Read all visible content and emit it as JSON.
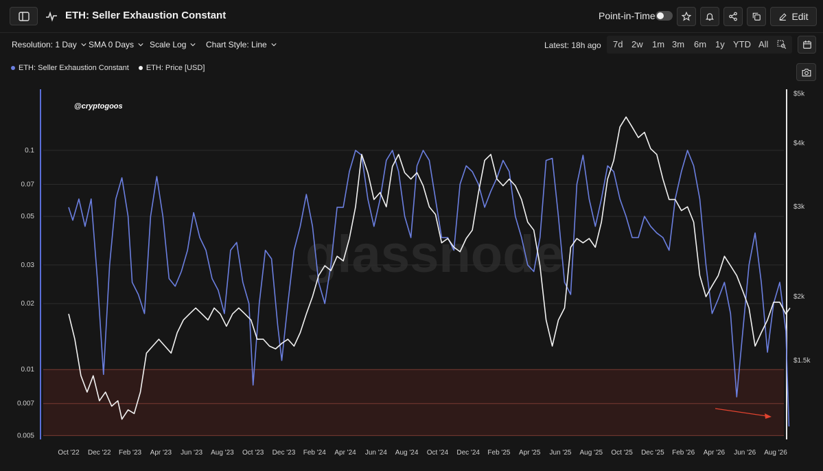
{
  "header": {
    "title": "ETH: Seller Exhaustion Constant",
    "point_in_time_label": "Point-in-Time",
    "edit_label": "Edit"
  },
  "toolbar": {
    "resolution": "Resolution: 1 Day",
    "sma": "SMA 0 Days",
    "scale": "Scale Log",
    "chart_style": "Chart Style: Line",
    "latest": "Latest: 18h ago",
    "ranges": [
      "7d",
      "2w",
      "1m",
      "3m",
      "6m",
      "1y",
      "YTD",
      "All"
    ]
  },
  "legend": [
    {
      "label": "ETH: Seller Exhaustion Constant",
      "color": "#6b7fe0"
    },
    {
      "label": "ETH: Price [USD]",
      "color": "#f2f2f2"
    }
  ],
  "watermark": "glassnode",
  "handle": "@cryptogoos",
  "chart_data": {
    "type": "line",
    "scale": "log",
    "x_ticks": [
      "Oct '22",
      "Dec '22",
      "Feb '23",
      "Apr '23",
      "Jun '23",
      "Aug '23",
      "Oct '23",
      "Dec '23",
      "Feb '24",
      "Apr '24",
      "Jun '24",
      "Aug '24",
      "Oct '24",
      "Dec '24",
      "Feb '25",
      "Apr '25",
      "Jun '25",
      "Aug '25",
      "Oct '25",
      "Dec '25",
      "Feb '26",
      "Apr '26",
      "Jun '26",
      "Aug '26"
    ],
    "y_left_ticks": [
      "0.1",
      "0.07",
      "0.05",
      "0.03",
      "0.02",
      "0.01",
      "0.007",
      "0.005"
    ],
    "y_left_values": [
      0.1,
      0.07,
      0.05,
      0.03,
      0.02,
      0.01,
      0.007,
      0.005
    ],
    "y_left_range": [
      0.0048,
      0.19
    ],
    "y_right_ticks": [
      "$5k",
      "$4k",
      "$3k",
      "$2k",
      "$1.5k"
    ],
    "y_right_values": [
      5000,
      4000,
      3000,
      2000,
      1500
    ],
    "y_right_range": [
      1050,
      5100
    ],
    "zone": {
      "from": 0.005,
      "to": 0.01,
      "color": "#c0392b"
    },
    "series": [
      {
        "name": "ETH: Seller Exhaustion Constant",
        "color": "#6b7fe0",
        "points": [
          [
            0,
            0.055
          ],
          [
            0.2,
            0.048
          ],
          [
            0.5,
            0.06
          ],
          [
            0.8,
            0.045
          ],
          [
            1.1,
            0.06
          ],
          [
            1.4,
            0.026
          ],
          [
            1.7,
            0.0095
          ],
          [
            2.0,
            0.03
          ],
          [
            2.3,
            0.06
          ],
          [
            2.6,
            0.075
          ],
          [
            2.9,
            0.05
          ],
          [
            3.1,
            0.025
          ],
          [
            3.4,
            0.022
          ],
          [
            3.7,
            0.018
          ],
          [
            4.0,
            0.05
          ],
          [
            4.3,
            0.076
          ],
          [
            4.6,
            0.05
          ],
          [
            4.9,
            0.026
          ],
          [
            5.2,
            0.024
          ],
          [
            5.5,
            0.028
          ],
          [
            5.8,
            0.035
          ],
          [
            6.1,
            0.052
          ],
          [
            6.4,
            0.04
          ],
          [
            6.7,
            0.035
          ],
          [
            7.0,
            0.026
          ],
          [
            7.3,
            0.023
          ],
          [
            7.6,
            0.018
          ],
          [
            7.9,
            0.035
          ],
          [
            8.2,
            0.038
          ],
          [
            8.5,
            0.025
          ],
          [
            8.8,
            0.02
          ],
          [
            9.0,
            0.0085
          ],
          [
            9.3,
            0.02
          ],
          [
            9.6,
            0.035
          ],
          [
            9.9,
            0.032
          ],
          [
            10.2,
            0.016
          ],
          [
            10.4,
            0.011
          ],
          [
            10.7,
            0.02
          ],
          [
            11.0,
            0.035
          ],
          [
            11.3,
            0.045
          ],
          [
            11.6,
            0.063
          ],
          [
            11.9,
            0.045
          ],
          [
            12.2,
            0.025
          ],
          [
            12.5,
            0.02
          ],
          [
            12.8,
            0.03
          ],
          [
            13.1,
            0.055
          ],
          [
            13.4,
            0.055
          ],
          [
            13.7,
            0.08
          ],
          [
            14.0,
            0.1
          ],
          [
            14.3,
            0.095
          ],
          [
            14.6,
            0.06
          ],
          [
            14.9,
            0.045
          ],
          [
            15.2,
            0.06
          ],
          [
            15.5,
            0.09
          ],
          [
            15.8,
            0.1
          ],
          [
            16.1,
            0.08
          ],
          [
            16.4,
            0.05
          ],
          [
            16.7,
            0.04
          ],
          [
            17.0,
            0.085
          ],
          [
            17.3,
            0.1
          ],
          [
            17.6,
            0.09
          ],
          [
            17.9,
            0.06
          ],
          [
            18.2,
            0.04
          ],
          [
            18.5,
            0.04
          ],
          [
            18.8,
            0.035
          ],
          [
            19.1,
            0.07
          ],
          [
            19.4,
            0.085
          ],
          [
            19.7,
            0.08
          ],
          [
            20.0,
            0.07
          ],
          [
            20.3,
            0.055
          ],
          [
            20.6,
            0.065
          ],
          [
            20.9,
            0.075
          ],
          [
            21.2,
            0.09
          ],
          [
            21.5,
            0.08
          ],
          [
            21.8,
            0.05
          ],
          [
            22.1,
            0.04
          ],
          [
            22.4,
            0.03
          ],
          [
            22.7,
            0.028
          ],
          [
            23.0,
            0.04
          ],
          [
            23.3,
            0.09
          ],
          [
            23.6,
            0.092
          ],
          [
            23.9,
            0.05
          ],
          [
            24.2,
            0.025
          ],
          [
            24.5,
            0.022
          ],
          [
            24.8,
            0.07
          ],
          [
            25.1,
            0.095
          ],
          [
            25.4,
            0.06
          ],
          [
            25.7,
            0.045
          ],
          [
            26.0,
            0.06
          ],
          [
            26.3,
            0.085
          ],
          [
            26.6,
            0.08
          ],
          [
            26.9,
            0.06
          ],
          [
            27.2,
            0.05
          ],
          [
            27.5,
            0.04
          ],
          [
            27.8,
            0.04
          ],
          [
            28.1,
            0.05
          ],
          [
            28.4,
            0.045
          ],
          [
            28.7,
            0.042
          ],
          [
            29.0,
            0.04
          ],
          [
            29.3,
            0.035
          ],
          [
            29.6,
            0.06
          ],
          [
            29.9,
            0.08
          ],
          [
            30.2,
            0.1
          ],
          [
            30.5,
            0.085
          ],
          [
            30.8,
            0.06
          ],
          [
            31.1,
            0.03
          ],
          [
            31.4,
            0.018
          ],
          [
            31.7,
            0.021
          ],
          [
            32.0,
            0.025
          ],
          [
            32.3,
            0.018
          ],
          [
            32.6,
            0.0075
          ],
          [
            32.9,
            0.015
          ],
          [
            33.2,
            0.03
          ],
          [
            33.5,
            0.042
          ],
          [
            33.8,
            0.025
          ],
          [
            34.1,
            0.012
          ],
          [
            34.4,
            0.02
          ],
          [
            34.7,
            0.025
          ],
          [
            35.0,
            0.015
          ],
          [
            35.15,
            0.0055
          ]
        ]
      },
      {
        "name": "ETH: Price [USD]",
        "color": "#f2f2f2",
        "points": [
          [
            0,
            1850
          ],
          [
            0.3,
            1650
          ],
          [
            0.6,
            1400
          ],
          [
            0.9,
            1300
          ],
          [
            1.2,
            1400
          ],
          [
            1.5,
            1250
          ],
          [
            1.8,
            1300
          ],
          [
            2.1,
            1220
          ],
          [
            2.4,
            1250
          ],
          [
            2.6,
            1150
          ],
          [
            2.9,
            1200
          ],
          [
            3.2,
            1180
          ],
          [
            3.5,
            1300
          ],
          [
            3.8,
            1550
          ],
          [
            4.1,
            1600
          ],
          [
            4.4,
            1650
          ],
          [
            4.7,
            1600
          ],
          [
            5.0,
            1550
          ],
          [
            5.3,
            1700
          ],
          [
            5.6,
            1800
          ],
          [
            5.9,
            1850
          ],
          [
            6.2,
            1900
          ],
          [
            6.5,
            1850
          ],
          [
            6.8,
            1800
          ],
          [
            7.1,
            1900
          ],
          [
            7.4,
            1850
          ],
          [
            7.7,
            1750
          ],
          [
            8.0,
            1850
          ],
          [
            8.3,
            1900
          ],
          [
            8.6,
            1850
          ],
          [
            8.9,
            1800
          ],
          [
            9.2,
            1650
          ],
          [
            9.5,
            1650
          ],
          [
            9.8,
            1600
          ],
          [
            10.1,
            1580
          ],
          [
            10.4,
            1620
          ],
          [
            10.7,
            1650
          ],
          [
            11.0,
            1600
          ],
          [
            11.3,
            1700
          ],
          [
            11.6,
            1850
          ],
          [
            11.9,
            2000
          ],
          [
            12.2,
            2200
          ],
          [
            12.5,
            2300
          ],
          [
            12.8,
            2250
          ],
          [
            13.1,
            2400
          ],
          [
            13.4,
            2350
          ],
          [
            13.7,
            2600
          ],
          [
            14.0,
            3000
          ],
          [
            14.3,
            3800
          ],
          [
            14.6,
            3500
          ],
          [
            14.9,
            3100
          ],
          [
            15.2,
            3200
          ],
          [
            15.5,
            3000
          ],
          [
            15.8,
            3600
          ],
          [
            16.1,
            3800
          ],
          [
            16.4,
            3500
          ],
          [
            16.7,
            3400
          ],
          [
            17.0,
            3500
          ],
          [
            17.3,
            3300
          ],
          [
            17.6,
            3000
          ],
          [
            17.9,
            2900
          ],
          [
            18.2,
            2550
          ],
          [
            18.5,
            2600
          ],
          [
            18.8,
            2500
          ],
          [
            19.1,
            2450
          ],
          [
            19.4,
            2600
          ],
          [
            19.7,
            2700
          ],
          [
            20.0,
            3200
          ],
          [
            20.3,
            3700
          ],
          [
            20.6,
            3800
          ],
          [
            20.9,
            3400
          ],
          [
            21.2,
            3300
          ],
          [
            21.5,
            3400
          ],
          [
            21.8,
            3300
          ],
          [
            22.1,
            3100
          ],
          [
            22.4,
            2800
          ],
          [
            22.7,
            2700
          ],
          [
            23.0,
            2300
          ],
          [
            23.3,
            1800
          ],
          [
            23.6,
            1600
          ],
          [
            23.9,
            1800
          ],
          [
            24.2,
            1900
          ],
          [
            24.5,
            2500
          ],
          [
            24.8,
            2600
          ],
          [
            25.1,
            2550
          ],
          [
            25.4,
            2600
          ],
          [
            25.7,
            2500
          ],
          [
            26.0,
            2800
          ],
          [
            26.3,
            3400
          ],
          [
            26.6,
            3700
          ],
          [
            26.9,
            4300
          ],
          [
            27.2,
            4500
          ],
          [
            27.5,
            4300
          ],
          [
            27.8,
            4100
          ],
          [
            28.1,
            4200
          ],
          [
            28.4,
            3900
          ],
          [
            28.7,
            3800
          ],
          [
            29.0,
            3400
          ],
          [
            29.3,
            3100
          ],
          [
            29.6,
            3100
          ],
          [
            29.9,
            2950
          ],
          [
            30.2,
            3000
          ],
          [
            30.5,
            2800
          ],
          [
            30.8,
            2200
          ],
          [
            31.1,
            2000
          ],
          [
            31.4,
            2100
          ],
          [
            31.7,
            2200
          ],
          [
            32.0,
            2400
          ],
          [
            32.3,
            2300
          ],
          [
            32.6,
            2200
          ],
          [
            32.9,
            2050
          ],
          [
            33.2,
            1900
          ],
          [
            33.5,
            1600
          ],
          [
            33.8,
            1700
          ],
          [
            34.1,
            1800
          ],
          [
            34.4,
            1950
          ],
          [
            34.7,
            1950
          ],
          [
            35.0,
            1850
          ],
          [
            35.2,
            1900
          ]
        ]
      }
    ]
  }
}
